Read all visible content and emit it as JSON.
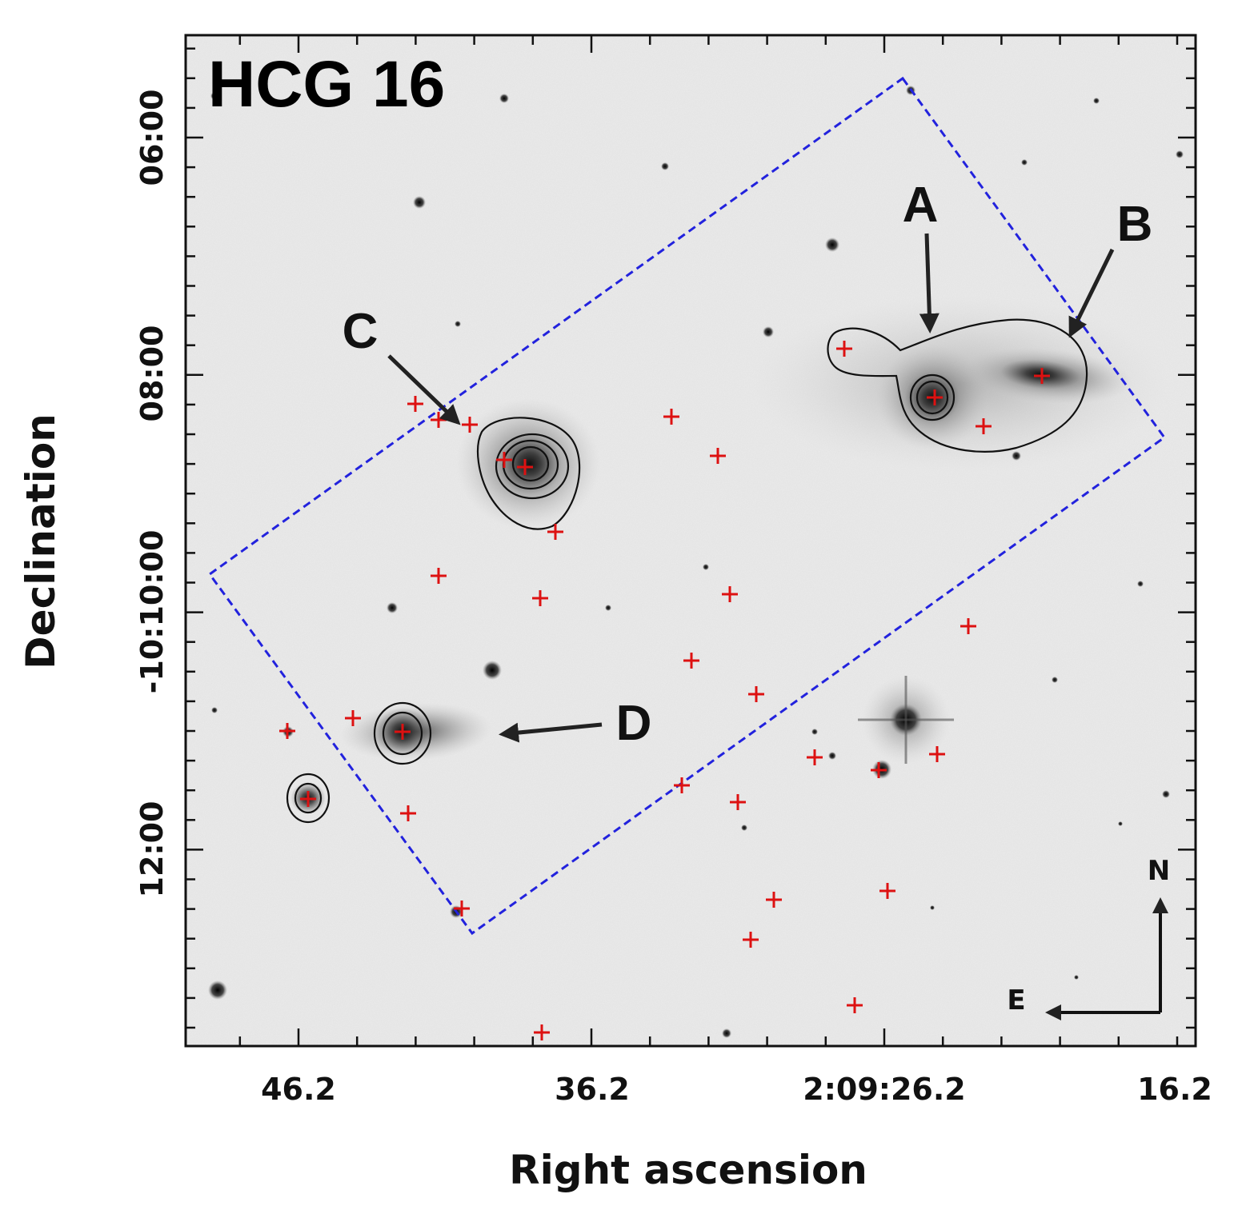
{
  "title": "HCG 16",
  "axes": {
    "xlabel": "Right ascension",
    "ylabel": "Declination",
    "x_ticks": [
      "46.2",
      "36.2",
      "2:09:26.2",
      "16.2"
    ],
    "y_ticks": [
      "06:00",
      "08:00",
      "-10:10:00",
      "12:00"
    ]
  },
  "galaxies": {
    "A": "A",
    "B": "B",
    "C": "C",
    "D": "D"
  },
  "compass": {
    "north": "N",
    "east": "E"
  },
  "colors": {
    "footprint": "#2222dd",
    "marker": "#dd1111",
    "contour": "#111111",
    "sky": "#ececec"
  }
}
